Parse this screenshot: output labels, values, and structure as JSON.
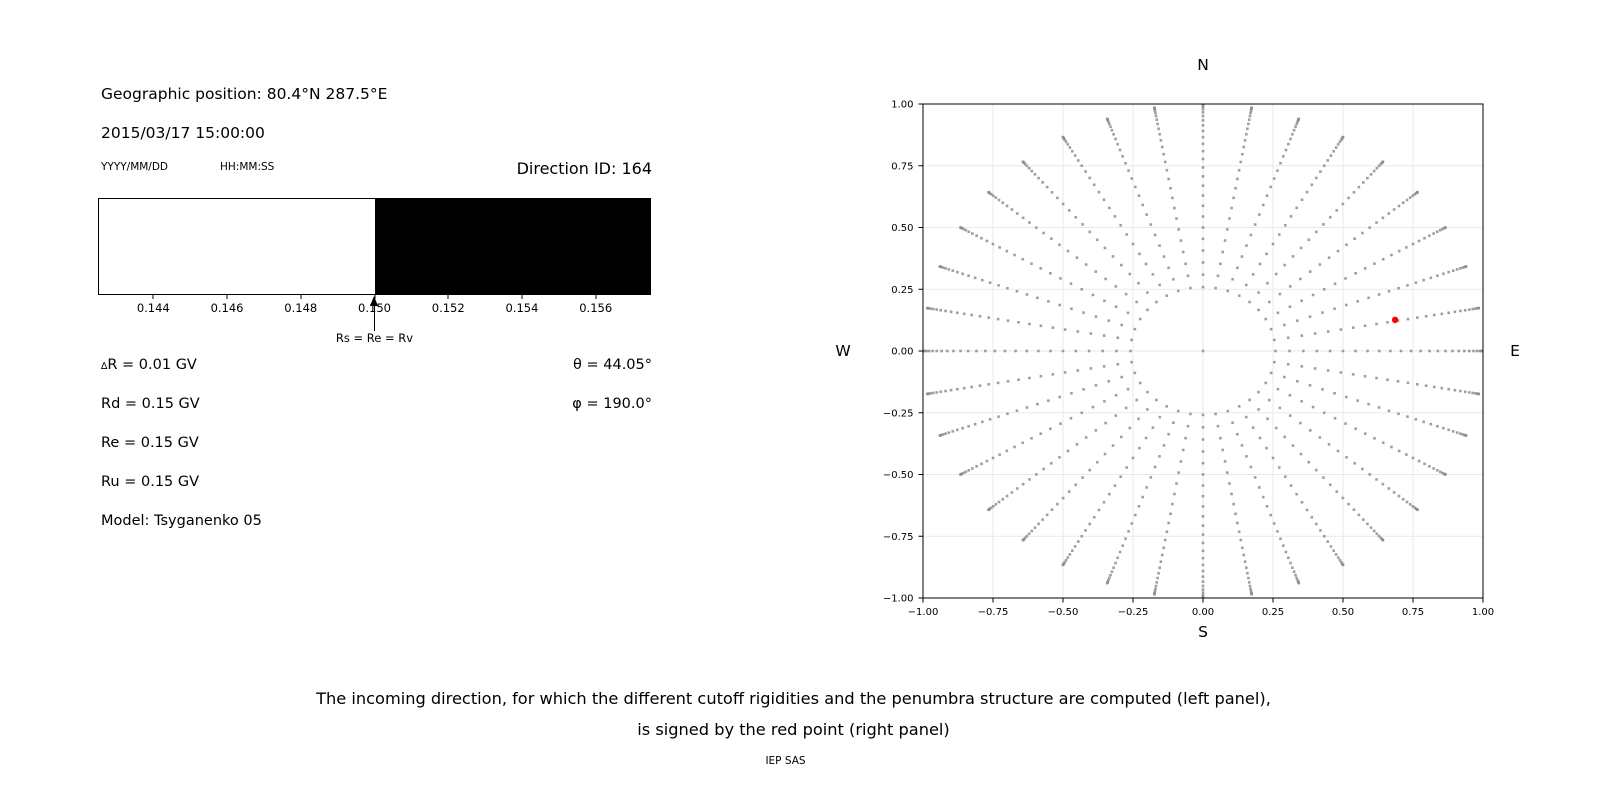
{
  "header": {
    "geographic_position": "Geographic position: 80.4°N 287.5°E",
    "datetime": "2015/03/17 15:00:00",
    "date_format_label": "YYYY/MM/DD",
    "time_format_label": "HH:MM:SS",
    "direction_id": "Direction ID: 164"
  },
  "penumbra_bar": {
    "range": [
      0.1425,
      0.1575
    ],
    "white_until": 0.15,
    "tick_values": [
      0.144,
      0.146,
      0.148,
      0.15,
      0.152,
      0.154,
      0.156
    ],
    "tick_labels": [
      "0.144",
      "0.146",
      "0.148",
      "0.150",
      "0.152",
      "0.154",
      "0.156"
    ],
    "arrow_value": 0.15,
    "arrow_label": "Rs = Re = Rv",
    "allowed_color": "#ffffff",
    "forbidden_color": "#000000"
  },
  "parameters": {
    "delta_prefix": "∆",
    "delta_rest": "R = 0.01 GV",
    "rd": "Rd = 0.15 GV",
    "re": "Re = 0.15 GV",
    "ru": "Ru = 0.15 GV",
    "model": "Model: Tsyganenko 05",
    "theta": "θ = 44.05°",
    "phi": "φ = 190.0°"
  },
  "chart_data": {
    "type": "scatter",
    "compass_labels": {
      "top": "N",
      "right": "E",
      "bottom": "S",
      "left": "W"
    },
    "xlim": [
      -1,
      1
    ],
    "ylim": [
      -1,
      1
    ],
    "x_tick_values": [
      -1,
      -0.75,
      -0.5,
      -0.25,
      0,
      0.25,
      0.5,
      0.75,
      1
    ],
    "x_tick_labels": [
      "−1.00",
      "−0.75",
      "−0.50",
      "−0.25",
      "0.00",
      "0.25",
      "0.50",
      "0.75",
      "1.00"
    ],
    "y_tick_values": [
      -1,
      -0.75,
      -0.5,
      -0.25,
      0,
      0.25,
      0.5,
      0.75,
      1
    ],
    "y_tick_labels": [
      "−1.00",
      "−0.75",
      "−0.50",
      "−0.25",
      "0.00",
      "0.25",
      "0.50",
      "0.75",
      "1.00"
    ],
    "grid": true,
    "grid_color": "#e9e9e9",
    "direction_grid": {
      "azimuth_start_deg": 0,
      "azimuth_step_deg": 10,
      "azimuth_count": 36,
      "zenith_start_deg": 15,
      "zenith_end_deg": 90,
      "zenith_step_deg": 3,
      "radius_rule": "sin(zenith)",
      "center_point": true,
      "marker_color": "#8a8a8a"
    },
    "red_point": {
      "x": 0.686,
      "y": 0.126,
      "color": "#ff0000"
    }
  },
  "caption": {
    "line1": "The incoming direction, for which the different cutoff rigidities and the penumbra structure are computed (left panel),",
    "line2": "is signed by the red point (right panel)",
    "credit": "IEP SAS"
  }
}
